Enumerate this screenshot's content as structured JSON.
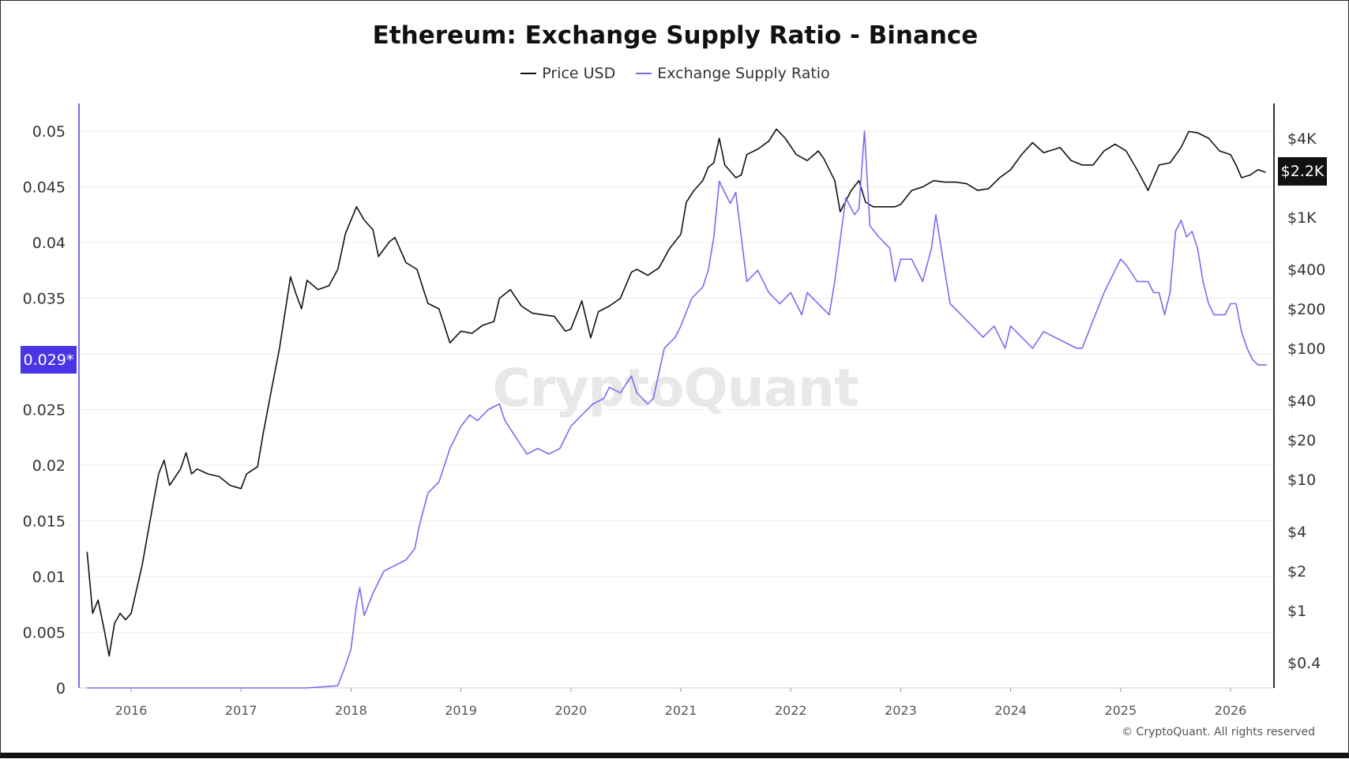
{
  "chart_data": {
    "type": "line",
    "title": "Ethereum: Exchange Supply Ratio - Binance",
    "x_ticks": [
      "2016",
      "2017",
      "2018",
      "2019",
      "2020",
      "2021",
      "2022",
      "2023",
      "2024",
      "2025",
      "2026"
    ],
    "y_left": {
      "ticks": [
        "0",
        "0.005",
        "0.01",
        "0.015",
        "0.02",
        "0.025",
        "0.03",
        "0.035",
        "0.04",
        "0.045",
        "0.05"
      ],
      "range": [
        0,
        0.05
      ]
    },
    "y_right": {
      "scale": "log",
      "ticks": [
        "$0.4",
        "$1",
        "$2",
        "$4",
        "$10",
        "$20",
        "$40",
        "$100",
        "$200",
        "$400",
        "$1K",
        "$4K"
      ],
      "tick_values": [
        0.4,
        1,
        2,
        4,
        10,
        20,
        40,
        100,
        200,
        400,
        1000,
        4000
      ]
    },
    "current_ratio_label": "0.029*",
    "current_price_label": "$2.2K",
    "grid": true,
    "legend_placement": "top-center",
    "series": [
      {
        "name": "Price USD",
        "axis": "right",
        "color": "#111111",
        "points": [
          [
            2015.6,
            2.8
          ],
          [
            2015.65,
            0.95
          ],
          [
            2015.7,
            1.2
          ],
          [
            2015.75,
            0.75
          ],
          [
            2015.8,
            0.45
          ],
          [
            2015.85,
            0.8
          ],
          [
            2015.9,
            0.95
          ],
          [
            2015.95,
            0.85
          ],
          [
            2016.0,
            0.95
          ],
          [
            2016.1,
            2.2
          ],
          [
            2016.2,
            6.5
          ],
          [
            2016.25,
            11
          ],
          [
            2016.3,
            14
          ],
          [
            2016.35,
            9
          ],
          [
            2016.45,
            12
          ],
          [
            2016.5,
            16
          ],
          [
            2016.55,
            11
          ],
          [
            2016.6,
            12
          ],
          [
            2016.7,
            11
          ],
          [
            2016.8,
            10.5
          ],
          [
            2016.9,
            9
          ],
          [
            2017.0,
            8.5
          ],
          [
            2017.05,
            11
          ],
          [
            2017.15,
            12.5
          ],
          [
            2017.2,
            22
          ],
          [
            2017.28,
            50
          ],
          [
            2017.35,
            100
          ],
          [
            2017.45,
            350
          ],
          [
            2017.5,
            260
          ],
          [
            2017.55,
            200
          ],
          [
            2017.6,
            330
          ],
          [
            2017.7,
            280
          ],
          [
            2017.8,
            300
          ],
          [
            2017.88,
            400
          ],
          [
            2017.95,
            750
          ],
          [
            2018.05,
            1200
          ],
          [
            2018.12,
            950
          ],
          [
            2018.2,
            800
          ],
          [
            2018.25,
            500
          ],
          [
            2018.35,
            650
          ],
          [
            2018.4,
            700
          ],
          [
            2018.5,
            450
          ],
          [
            2018.6,
            400
          ],
          [
            2018.7,
            220
          ],
          [
            2018.8,
            200
          ],
          [
            2018.9,
            110
          ],
          [
            2019.0,
            135
          ],
          [
            2019.1,
            130
          ],
          [
            2019.2,
            150
          ],
          [
            2019.3,
            160
          ],
          [
            2019.35,
            240
          ],
          [
            2019.45,
            280
          ],
          [
            2019.55,
            210
          ],
          [
            2019.65,
            185
          ],
          [
            2019.75,
            180
          ],
          [
            2019.85,
            175
          ],
          [
            2019.95,
            135
          ],
          [
            2020.0,
            140
          ],
          [
            2020.1,
            230
          ],
          [
            2020.18,
            120
          ],
          [
            2020.25,
            190
          ],
          [
            2020.35,
            210
          ],
          [
            2020.45,
            240
          ],
          [
            2020.55,
            380
          ],
          [
            2020.6,
            400
          ],
          [
            2020.7,
            360
          ],
          [
            2020.8,
            410
          ],
          [
            2020.9,
            580
          ],
          [
            2021.0,
            740
          ],
          [
            2021.05,
            1300
          ],
          [
            2021.12,
            1600
          ],
          [
            2021.2,
            1900
          ],
          [
            2021.25,
            2400
          ],
          [
            2021.3,
            2600
          ],
          [
            2021.35,
            4000
          ],
          [
            2021.4,
            2500
          ],
          [
            2021.5,
            2000
          ],
          [
            2021.55,
            2100
          ],
          [
            2021.6,
            3000
          ],
          [
            2021.7,
            3300
          ],
          [
            2021.8,
            3800
          ],
          [
            2021.87,
            4700
          ],
          [
            2021.95,
            4000
          ],
          [
            2022.05,
            3000
          ],
          [
            2022.15,
            2700
          ],
          [
            2022.25,
            3200
          ],
          [
            2022.3,
            2800
          ],
          [
            2022.4,
            1900
          ],
          [
            2022.45,
            1100
          ],
          [
            2022.55,
            1600
          ],
          [
            2022.62,
            1900
          ],
          [
            2022.68,
            1300
          ],
          [
            2022.75,
            1200
          ],
          [
            2022.85,
            1200
          ],
          [
            2022.95,
            1200
          ],
          [
            2023.0,
            1250
          ],
          [
            2023.1,
            1600
          ],
          [
            2023.2,
            1700
          ],
          [
            2023.3,
            1900
          ],
          [
            2023.4,
            1850
          ],
          [
            2023.5,
            1850
          ],
          [
            2023.6,
            1800
          ],
          [
            2023.7,
            1600
          ],
          [
            2023.8,
            1650
          ],
          [
            2023.9,
            2000
          ],
          [
            2024.0,
            2300
          ],
          [
            2024.1,
            3000
          ],
          [
            2024.2,
            3700
          ],
          [
            2024.3,
            3100
          ],
          [
            2024.45,
            3400
          ],
          [
            2024.55,
            2700
          ],
          [
            2024.65,
            2500
          ],
          [
            2024.75,
            2500
          ],
          [
            2024.85,
            3200
          ],
          [
            2024.95,
            3600
          ],
          [
            2025.05,
            3200
          ],
          [
            2025.15,
            2300
          ],
          [
            2025.25,
            1600
          ],
          [
            2025.35,
            2500
          ],
          [
            2025.45,
            2600
          ],
          [
            2025.55,
            3400
          ],
          [
            2025.62,
            4500
          ],
          [
            2025.7,
            4400
          ],
          [
            2025.8,
            4000
          ],
          [
            2025.9,
            3200
          ],
          [
            2026.0,
            3000
          ],
          [
            2026.05,
            2500
          ],
          [
            2026.1,
            2000
          ],
          [
            2026.18,
            2100
          ],
          [
            2026.25,
            2300
          ],
          [
            2026.32,
            2200
          ]
        ]
      },
      {
        "name": "Exchange Supply Ratio",
        "axis": "left",
        "color": "#7b6cf0",
        "points": [
          [
            2015.6,
            0
          ],
          [
            2017.6,
            0
          ],
          [
            2017.75,
            0.0001
          ],
          [
            2017.88,
            0.0002
          ],
          [
            2017.95,
            0.002
          ],
          [
            2018.0,
            0.0035
          ],
          [
            2018.05,
            0.0075
          ],
          [
            2018.08,
            0.009
          ],
          [
            2018.12,
            0.0065
          ],
          [
            2018.2,
            0.0085
          ],
          [
            2018.3,
            0.0105
          ],
          [
            2018.4,
            0.011
          ],
          [
            2018.5,
            0.0115
          ],
          [
            2018.58,
            0.0125
          ],
          [
            2018.62,
            0.0145
          ],
          [
            2018.7,
            0.0175
          ],
          [
            2018.8,
            0.0185
          ],
          [
            2018.9,
            0.0215
          ],
          [
            2019.0,
            0.0235
          ],
          [
            2019.08,
            0.0245
          ],
          [
            2019.15,
            0.024
          ],
          [
            2019.25,
            0.025
          ],
          [
            2019.35,
            0.0255
          ],
          [
            2019.4,
            0.024
          ],
          [
            2019.5,
            0.0225
          ],
          [
            2019.6,
            0.021
          ],
          [
            2019.7,
            0.0215
          ],
          [
            2019.8,
            0.021
          ],
          [
            2019.9,
            0.0215
          ],
          [
            2020.0,
            0.0235
          ],
          [
            2020.1,
            0.0245
          ],
          [
            2020.2,
            0.0255
          ],
          [
            2020.3,
            0.026
          ],
          [
            2020.35,
            0.027
          ],
          [
            2020.45,
            0.0265
          ],
          [
            2020.55,
            0.028
          ],
          [
            2020.6,
            0.0265
          ],
          [
            2020.7,
            0.0255
          ],
          [
            2020.75,
            0.026
          ],
          [
            2020.85,
            0.0305
          ],
          [
            2020.95,
            0.0315
          ],
          [
            2021.0,
            0.0325
          ],
          [
            2021.1,
            0.035
          ],
          [
            2021.2,
            0.036
          ],
          [
            2021.25,
            0.0375
          ],
          [
            2021.3,
            0.0405
          ],
          [
            2021.35,
            0.0455
          ],
          [
            2021.45,
            0.0435
          ],
          [
            2021.5,
            0.0445
          ],
          [
            2021.6,
            0.0365
          ],
          [
            2021.7,
            0.0375
          ],
          [
            2021.8,
            0.0355
          ],
          [
            2021.9,
            0.0345
          ],
          [
            2022.0,
            0.0355
          ],
          [
            2022.1,
            0.0335
          ],
          [
            2022.15,
            0.0355
          ],
          [
            2022.25,
            0.0345
          ],
          [
            2022.35,
            0.0335
          ],
          [
            2022.4,
            0.0365
          ],
          [
            2022.5,
            0.044
          ],
          [
            2022.58,
            0.0425
          ],
          [
            2022.62,
            0.043
          ],
          [
            2022.67,
            0.05
          ],
          [
            2022.72,
            0.0415
          ],
          [
            2022.8,
            0.0405
          ],
          [
            2022.9,
            0.0395
          ],
          [
            2022.95,
            0.0365
          ],
          [
            2023.0,
            0.0385
          ],
          [
            2023.1,
            0.0385
          ],
          [
            2023.2,
            0.0365
          ],
          [
            2023.28,
            0.0395
          ],
          [
            2023.32,
            0.0425
          ],
          [
            2023.4,
            0.0375
          ],
          [
            2023.45,
            0.0345
          ],
          [
            2023.55,
            0.0335
          ],
          [
            2023.65,
            0.0325
          ],
          [
            2023.75,
            0.0315
          ],
          [
            2023.85,
            0.0325
          ],
          [
            2023.95,
            0.0305
          ],
          [
            2024.0,
            0.0325
          ],
          [
            2024.1,
            0.0315
          ],
          [
            2024.2,
            0.0305
          ],
          [
            2024.3,
            0.032
          ],
          [
            2024.4,
            0.0315
          ],
          [
            2024.5,
            0.031
          ],
          [
            2024.6,
            0.0305
          ],
          [
            2024.65,
            0.0305
          ],
          [
            2024.75,
            0.033
          ],
          [
            2024.85,
            0.0355
          ],
          [
            2024.95,
            0.0375
          ],
          [
            2025.0,
            0.0385
          ],
          [
            2025.05,
            0.038
          ],
          [
            2025.15,
            0.0365
          ],
          [
            2025.25,
            0.0365
          ],
          [
            2025.3,
            0.0355
          ],
          [
            2025.35,
            0.0355
          ],
          [
            2025.4,
            0.0335
          ],
          [
            2025.45,
            0.0355
          ],
          [
            2025.5,
            0.041
          ],
          [
            2025.55,
            0.042
          ],
          [
            2025.6,
            0.0405
          ],
          [
            2025.65,
            0.041
          ],
          [
            2025.7,
            0.0395
          ],
          [
            2025.75,
            0.0365
          ],
          [
            2025.8,
            0.0345
          ],
          [
            2025.85,
            0.0335
          ],
          [
            2025.9,
            0.0335
          ],
          [
            2025.95,
            0.0335
          ],
          [
            2026.0,
            0.0345
          ],
          [
            2026.05,
            0.0345
          ],
          [
            2026.1,
            0.032
          ],
          [
            2026.15,
            0.0305
          ],
          [
            2026.2,
            0.0295
          ],
          [
            2026.25,
            0.029
          ],
          [
            2026.3,
            0.029
          ],
          [
            2026.33,
            0.029
          ]
        ]
      }
    ]
  },
  "legend": {
    "items": [
      {
        "label": "Price USD",
        "color": "#111111"
      },
      {
        "label": "Exchange Supply Ratio",
        "color": "#7b6cf0"
      }
    ]
  },
  "watermark": "CryptoQuant",
  "copyright": "© CryptoQuant. All rights reserved"
}
